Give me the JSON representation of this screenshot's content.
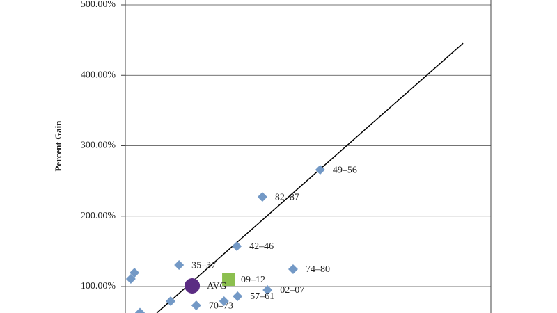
{
  "chart_data": {
    "type": "scatter",
    "y_label": "Percent Gain",
    "xlim": [
      0,
      100
    ],
    "ylim": [
      62.5,
      500
    ],
    "yticks": [
      {
        "value": 100,
        "label": "100.00%"
      },
      {
        "value": 200,
        "label": "200.00%"
      },
      {
        "value": 300,
        "label": "300.00%"
      },
      {
        "value": 400,
        "label": "400.00%"
      },
      {
        "value": 500,
        "label": "500.00%"
      }
    ],
    "grid": true,
    "series": [
      {
        "color": "#7399c6",
        "marker": "diamond",
        "x": [
          53.3,
          37.5,
          30.5,
          14.7,
          45.9,
          38.9,
          30.7,
          19.4,
          27.0,
          12.4,
          2.5,
          1.5,
          4.0
        ],
        "y": [
          265.8,
          227.3,
          157.3,
          130.6,
          124.7,
          95.1,
          86.2,
          73.3,
          79.3,
          79.3,
          119.7,
          110.9,
          63
        ],
        "labels": [
          "49–56",
          "82–87",
          "42–46",
          "35–37",
          "74–80",
          "02–07",
          "57–61",
          "70–73",
          null,
          null,
          null,
          null,
          null
        ]
      },
      {
        "color": "#8cbf4f",
        "marker": "square",
        "x": [
          28.2
        ],
        "y": [
          109.9
        ],
        "labels": [
          "09–12"
        ]
      },
      {
        "color": "#5b2c83",
        "marker": "circle",
        "x": [
          18.3
        ],
        "y": [
          101.0
        ],
        "labels": [
          "AVG"
        ]
      }
    ],
    "trendline": {
      "color": "#000000",
      "x": [
        8.6,
        92.4
      ],
      "y": [
        62.5,
        445.5
      ]
    }
  }
}
